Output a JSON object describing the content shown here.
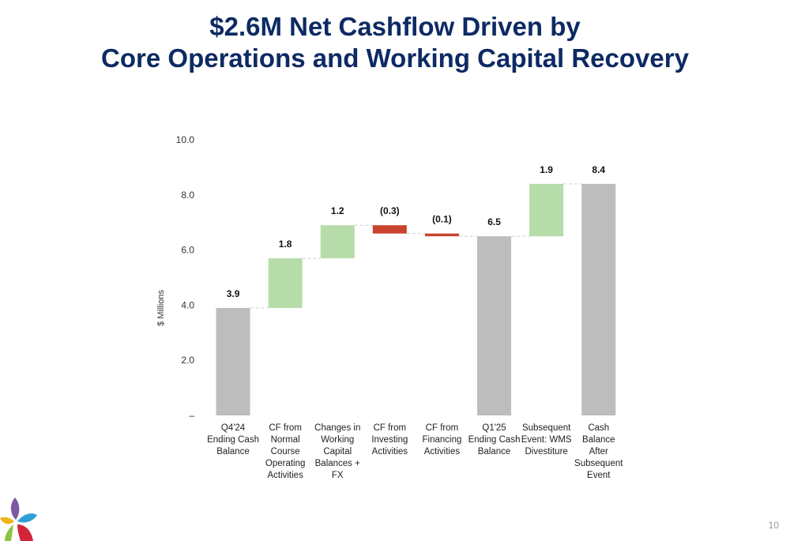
{
  "title_line1": "$2.6M Net Cashflow Driven by",
  "title_line2": "Core Operations and Working Capital Recovery",
  "page_number": "10",
  "colors": {
    "total": "#bdbdbd",
    "increase": "#b6dca9",
    "decrease": "#c9432d",
    "title": "#0d2a63"
  },
  "chart_data": {
    "type": "bar",
    "subtype": "waterfall",
    "ylabel": "$ Millions",
    "ylim": [
      0,
      10
    ],
    "yticks": [
      0,
      2,
      4,
      6,
      8,
      10
    ],
    "ytick_labels": [
      "–",
      "2.0",
      "4.0",
      "6.0",
      "8.0",
      "10.0"
    ],
    "grid": false,
    "bars": [
      {
        "category": [
          "Q4'24",
          "Ending Cash",
          "Balance"
        ],
        "kind": "total",
        "start": 0,
        "end": 3.9,
        "label": "3.9"
      },
      {
        "category": [
          "CF from",
          "Normal",
          "Course",
          "Operating",
          "Activities"
        ],
        "kind": "increase",
        "start": 3.9,
        "end": 5.7,
        "label": "1.8"
      },
      {
        "category": [
          "Changes in",
          "Working",
          "Capital",
          "Balances +",
          "FX"
        ],
        "kind": "increase",
        "start": 5.7,
        "end": 6.9,
        "label": "1.2"
      },
      {
        "category": [
          "CF from",
          "Investing",
          "Activities"
        ],
        "kind": "decrease",
        "start": 6.9,
        "end": 6.6,
        "label": "(0.3)"
      },
      {
        "category": [
          "CF from",
          "Financing",
          "Activities"
        ],
        "kind": "decrease",
        "start": 6.6,
        "end": 6.5,
        "label": "(0.1)"
      },
      {
        "category": [
          "Q1'25",
          "Ending Cash",
          "Balance"
        ],
        "kind": "total",
        "start": 0,
        "end": 6.5,
        "label": "6.5"
      },
      {
        "category": [
          "Subsequent",
          "Event: WMS",
          "Divestiture"
        ],
        "kind": "increase",
        "start": 6.5,
        "end": 8.4,
        "label": "1.9"
      },
      {
        "category": [
          "Cash",
          "Balance",
          "After",
          "Subsequent",
          "Event"
        ],
        "kind": "total",
        "start": 0,
        "end": 8.4,
        "label": "8.4"
      }
    ]
  }
}
